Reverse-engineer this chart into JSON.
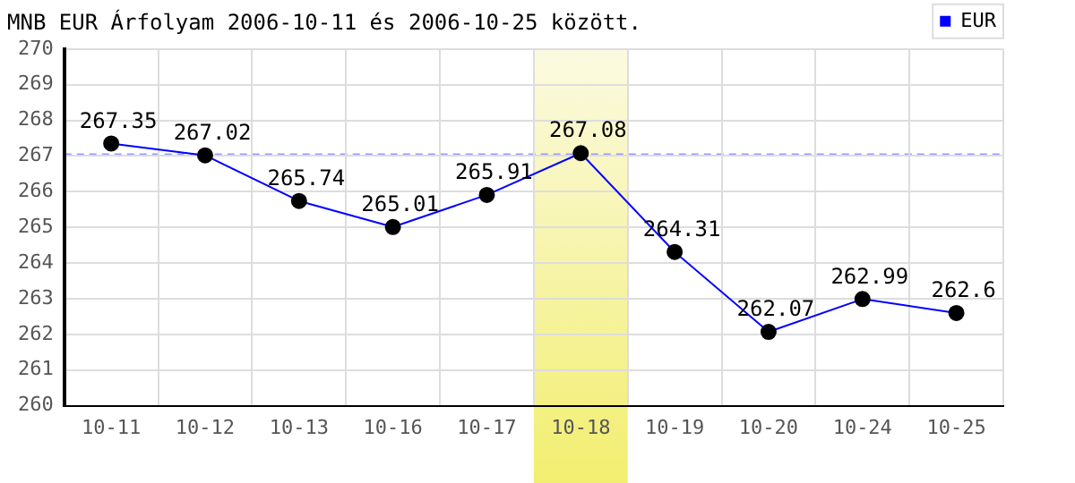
{
  "chart_data": {
    "type": "line",
    "title": "MNB EUR Árfolyam 2006-10-11 és 2006-10-25 között.",
    "categories": [
      "10-11",
      "10-12",
      "10-13",
      "10-16",
      "10-17",
      "10-18",
      "10-19",
      "10-20",
      "10-24",
      "10-25"
    ],
    "series": [
      {
        "name": "EUR",
        "color": "#0000ff",
        "values": [
          267.35,
          267.02,
          265.74,
          265.01,
          265.91,
          267.08,
          264.31,
          262.07,
          262.99,
          262.6
        ]
      }
    ],
    "ylim": [
      260,
      270
    ],
    "yticks": [
      260,
      261,
      262,
      263,
      264,
      265,
      266,
      267,
      268,
      269,
      270
    ],
    "ref_lines": [
      {
        "axis": "y",
        "value": 267.05,
        "color": "#9999ff",
        "line_style": "dashed"
      }
    ],
    "bands": [
      {
        "axis": "x",
        "from": "10-18",
        "to": "10-18",
        "color": "#f2ee70"
      }
    ],
    "grid": true,
    "legend": "top right",
    "marker": "circle",
    "line_style": "solid",
    "data_labels": true
  }
}
